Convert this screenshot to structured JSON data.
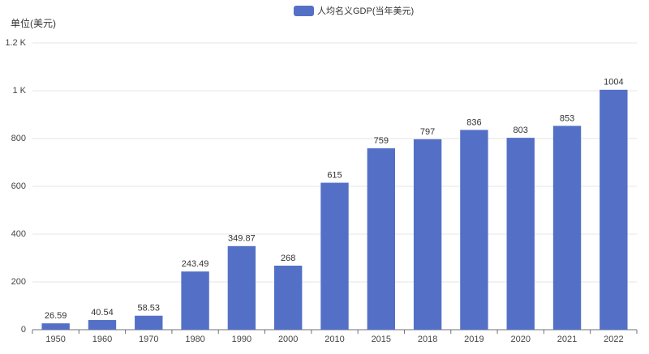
{
  "chart_data": {
    "type": "bar",
    "y_axis_label": "单位(美元)",
    "categories": [
      "1950",
      "1960",
      "1970",
      "1980",
      "1990",
      "2000",
      "2010",
      "2015",
      "2018",
      "2019",
      "2020",
      "2021",
      "2022"
    ],
    "series": [
      {
        "name": "人均名义GDP(当年美元)",
        "color": "#5470c6",
        "values": [
          26.59,
          40.54,
          58.53,
          243.49,
          349.87,
          268,
          615,
          759,
          797,
          836,
          803,
          853,
          1004
        ]
      }
    ],
    "ylim": [
      0,
      1200
    ],
    "yticks": [
      0,
      200,
      400,
      600,
      800,
      {
        "value": 1000,
        "label": "1 K"
      },
      {
        "value": 1200,
        "label": "1.2 K"
      }
    ],
    "grid": true,
    "legend": "top"
  }
}
